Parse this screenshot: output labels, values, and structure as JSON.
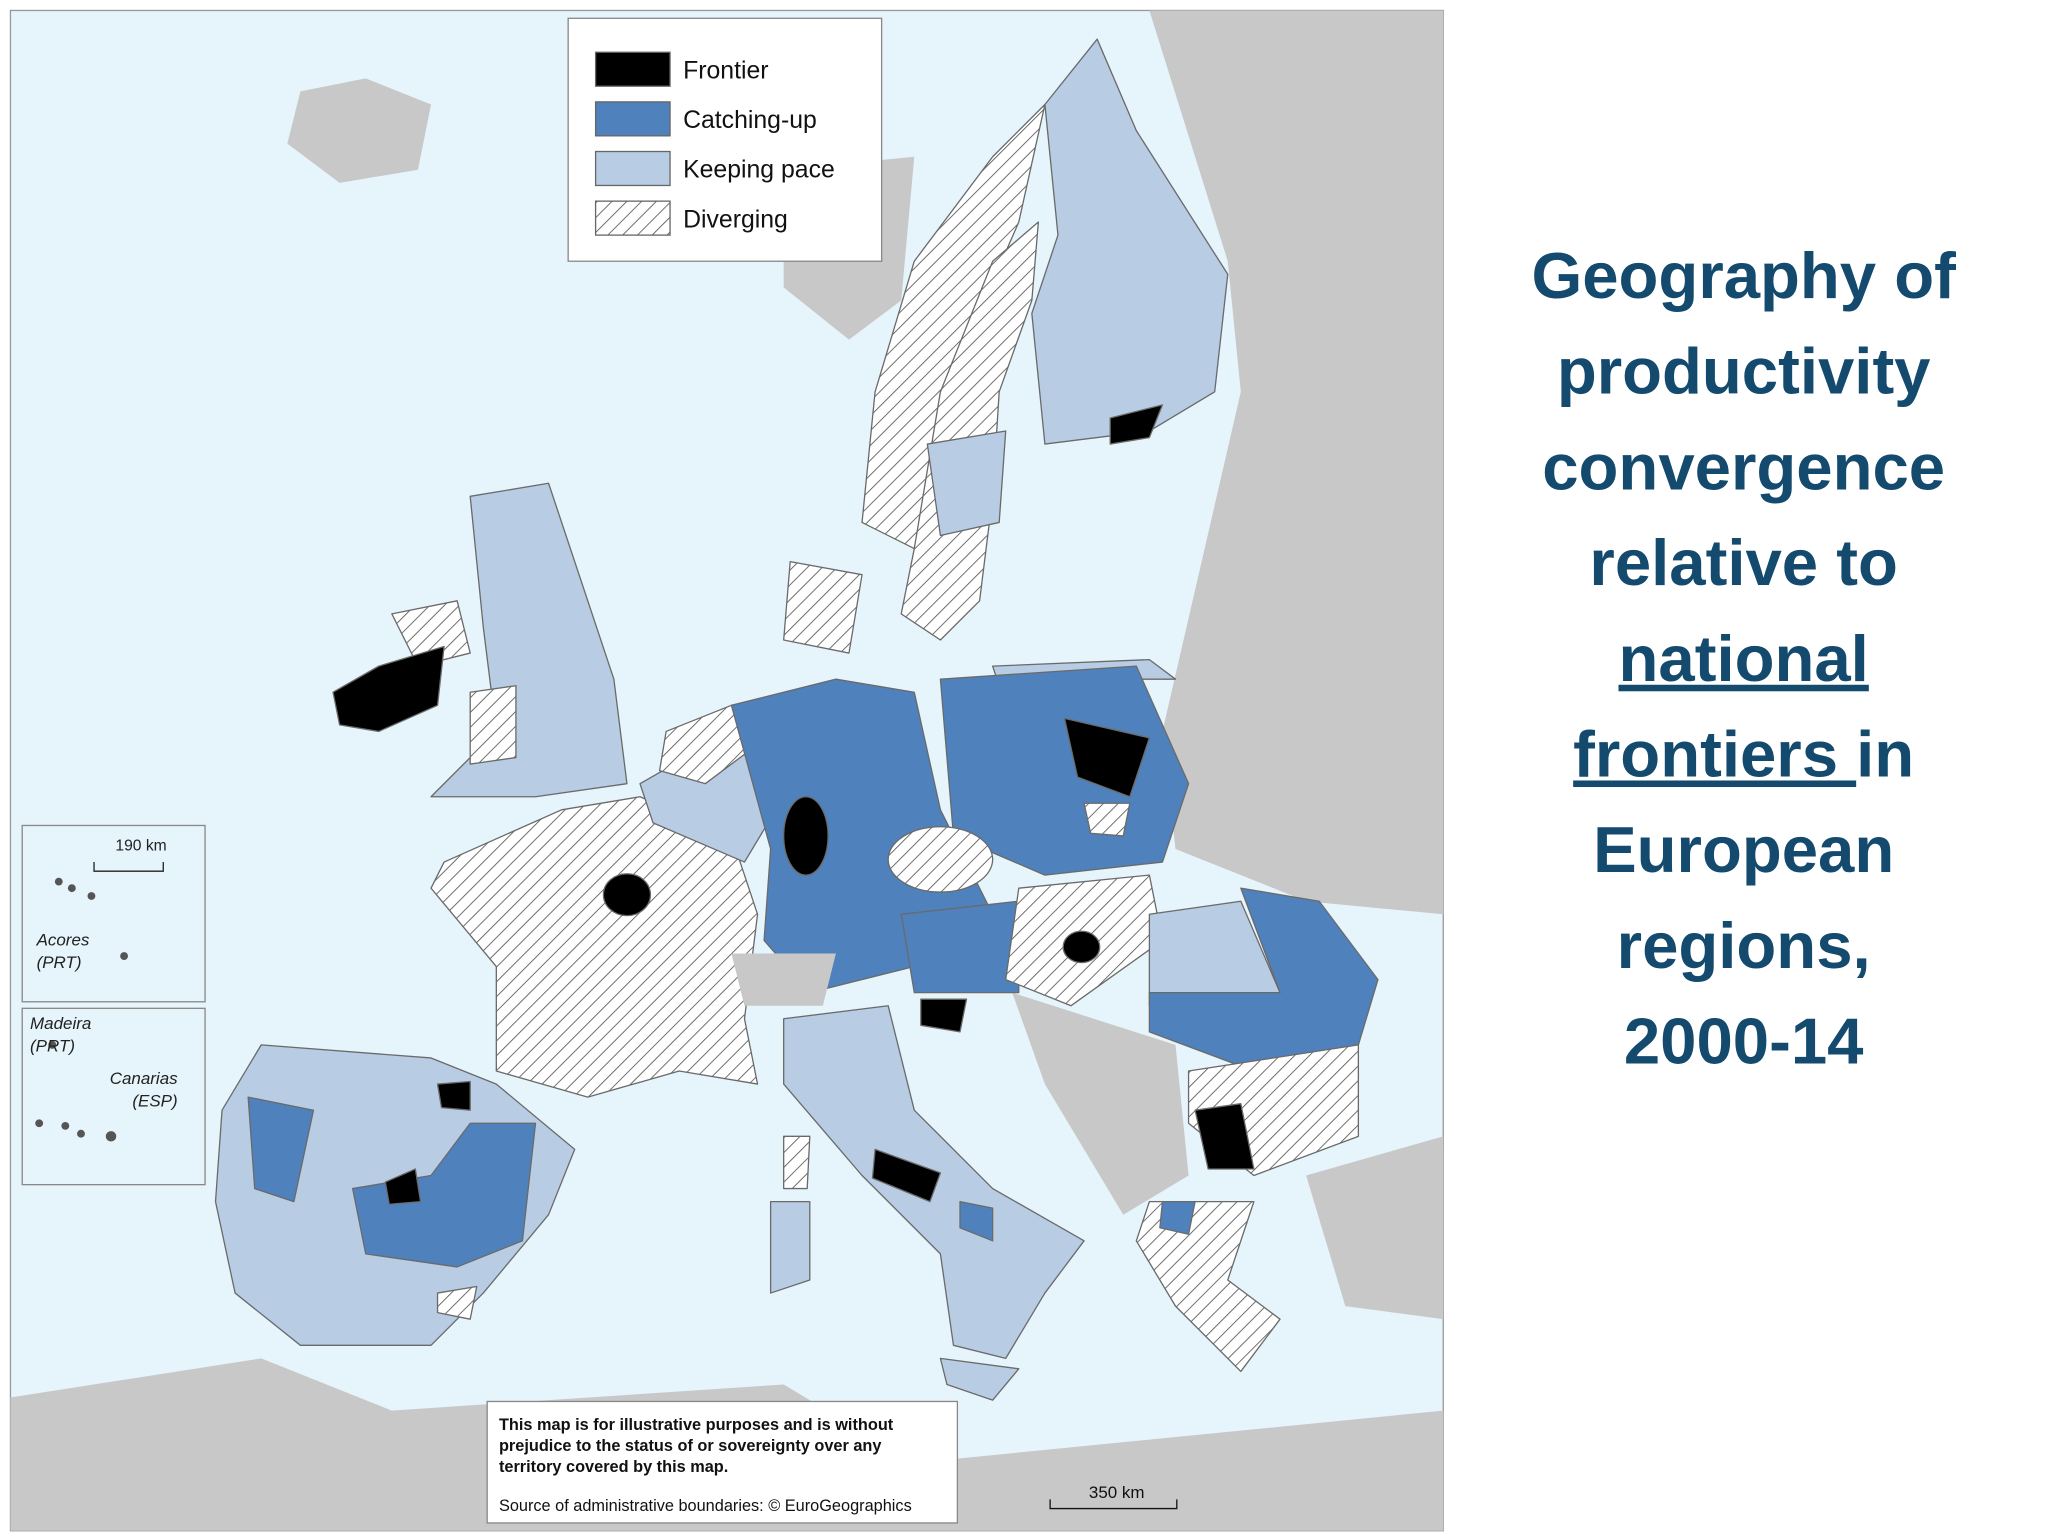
{
  "legend": {
    "items": [
      "Frontier",
      "Catching-up",
      "Keeping pace",
      "Diverging"
    ]
  },
  "insets": {
    "scale": "190 km",
    "labels": [
      [
        "Acores",
        "(PRT)"
      ],
      [
        "Madeira",
        "(PRT)"
      ],
      [
        "Canarias",
        "(ESP)"
      ]
    ]
  },
  "disclaimer": [
    "This map is for illustrative purposes and is without",
    "prejudice to the status of or sovereignty over any",
    "territory covered by this map."
  ],
  "source": "Source of administrative boundaries:  © EuroGeographics",
  "scale_bar": "350 km",
  "title": [
    [
      {
        "text": "Geography of"
      }
    ],
    [
      {
        "text": "productivity"
      }
    ],
    [
      {
        "text": "convergence"
      }
    ],
    [
      {
        "text": "relative to"
      }
    ],
    [
      {
        "text": "national",
        "underline": true
      }
    ],
    [
      {
        "text": "frontiers ",
        "underline": true
      },
      {
        "text": "in"
      }
    ],
    [
      {
        "text": "European"
      }
    ],
    [
      {
        "text": "regions,"
      }
    ],
    [
      {
        "text": "2000-14"
      }
    ]
  ]
}
